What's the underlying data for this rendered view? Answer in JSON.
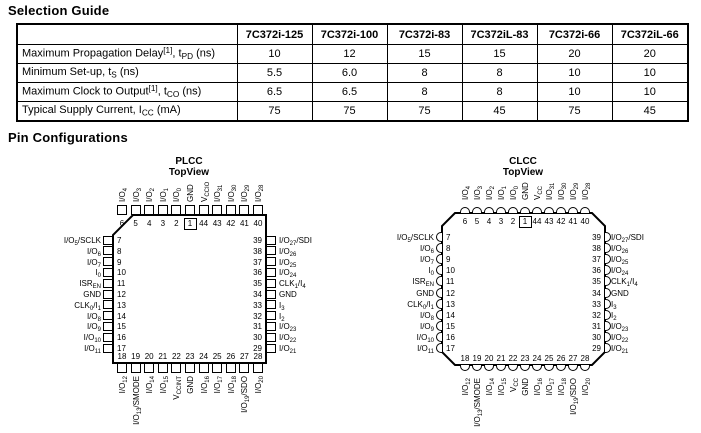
{
  "titles": {
    "selection_guide": "Selection Guide",
    "pin_configurations": "Pin Configurations"
  },
  "selection_table": {
    "corner": "",
    "columns": [
      "7C372i-125",
      "7C372i-100",
      "7C372i-83",
      "7C372iL-83",
      "7C372i-66",
      "7C372iL-66"
    ],
    "rows": [
      {
        "label": "Maximum Propagation Delay^[1]^, t_PD_ (ns)",
        "values": [
          "10",
          "12",
          "15",
          "15",
          "20",
          "20"
        ]
      },
      {
        "label": "Minimum Set-up, t_S_ (ns)",
        "values": [
          "5.5",
          "6.0",
          "8",
          "8",
          "10",
          "10"
        ]
      },
      {
        "label": "Maximum Clock to Output^[1]^, t_CO_ (ns)",
        "values": [
          "6.5",
          "6.5",
          "8",
          "8",
          "10",
          "10"
        ]
      },
      {
        "label": "Typical Supply Current, I_CC_ (mA)",
        "values": [
          "75",
          "75",
          "75",
          "45",
          "75",
          "45"
        ]
      }
    ]
  },
  "packages": [
    {
      "title": "PLCC",
      "subtitle": "TopView",
      "pin_shape": "square",
      "top": {
        "numbers": [
          "6",
          "5",
          "4",
          "3",
          "2",
          "1",
          "44",
          "43",
          "42",
          "41",
          "40"
        ],
        "labels": [
          "I/O_4_",
          "I/O_3_",
          "I/O_2_",
          "I/O_1_",
          "I/O_0_",
          "GND",
          "V_CCIO_",
          "I/O_31_",
          "I/O_30_",
          "I/O_29_",
          "I/O_28_"
        ]
      },
      "left": {
        "numbers": [
          "7",
          "8",
          "9",
          "10",
          "11",
          "12",
          "13",
          "14",
          "15",
          "16",
          "17"
        ],
        "labels": [
          "I/O_5_/SCLK",
          "I/O_6_",
          "I/O_7_",
          "I_0_",
          "ISR_EN_",
          "GND",
          "CLK_0_/I_1_",
          "I/O_8_",
          "I/O_9_",
          "I/O_10_",
          "I/O_11_"
        ]
      },
      "right": {
        "numbers": [
          "39",
          "38",
          "37",
          "36",
          "35",
          "34",
          "33",
          "32",
          "31",
          "30",
          "29"
        ],
        "labels": [
          "I/O_27_/SDI",
          "I/O_26_",
          "I/O_25_",
          "I/O_24_",
          "CLK_1_/I_4_",
          "GND",
          "I_3_",
          "I_2_",
          "I/O_23_",
          "I/O_22_",
          "I/O_21_"
        ]
      },
      "bottom": {
        "numbers": [
          "18",
          "19",
          "20",
          "21",
          "22",
          "23",
          "24",
          "25",
          "26",
          "27",
          "28"
        ],
        "labels": [
          "I/O_12_",
          "I/O_13_/SMODE",
          "I/O_14_",
          "I/O_15_",
          "V_CCINT_",
          "GND",
          "I/O_16_",
          "I/O_17_",
          "I/O_18_",
          "I/O_19_/SDO",
          "I/O_20_"
        ]
      }
    },
    {
      "title": "CLCC",
      "subtitle": "TopView",
      "pin_shape": "round",
      "top": {
        "numbers": [
          "6",
          "5",
          "4",
          "3",
          "2",
          "1",
          "44",
          "43",
          "42",
          "41",
          "40"
        ],
        "labels": [
          "I/O_4_",
          "I/O_3_",
          "I/O_2_",
          "I/O_1_",
          "I/O_0_",
          "GND",
          "V_CC_",
          "I/O_31_",
          "I/O_30_",
          "I/O_29_",
          "I/O_28_"
        ]
      },
      "left": {
        "numbers": [
          "7",
          "8",
          "9",
          "10",
          "11",
          "12",
          "13",
          "14",
          "15",
          "16",
          "17"
        ],
        "labels": [
          "I/O_5_/SCLK",
          "I/O_6_",
          "I/O_7_",
          "I_0_",
          "ISR_EN_",
          "GND",
          "CLK_0_/I_1_",
          "I/O_8_",
          "I/O_9_",
          "I/O_10_",
          "I/O_11_"
        ]
      },
      "right": {
        "numbers": [
          "39",
          "38",
          "37",
          "36",
          "35",
          "34",
          "33",
          "32",
          "31",
          "30",
          "29"
        ],
        "labels": [
          "I/O_27_/SDI",
          "I/O_26_",
          "I/O_25_",
          "I/O_24_",
          "CLK_1_/I_4_",
          "GND",
          "I_3_",
          "I_2_",
          "I/O_23_",
          "I/O_22_",
          "I/O_21_"
        ]
      },
      "bottom": {
        "numbers": [
          "18",
          "19",
          "20",
          "21",
          "22",
          "23",
          "24",
          "25",
          "26",
          "27",
          "28"
        ],
        "labels": [
          "I/O_12_",
          "I/O_13_/SMODE",
          "I/O_14_",
          "I/O_15_",
          "V_CC_",
          "GND",
          "I/O_16_",
          "I/O_17_",
          "I/O_18_",
          "I/O_19_/SDO",
          "I/O_20_"
        ]
      }
    }
  ]
}
